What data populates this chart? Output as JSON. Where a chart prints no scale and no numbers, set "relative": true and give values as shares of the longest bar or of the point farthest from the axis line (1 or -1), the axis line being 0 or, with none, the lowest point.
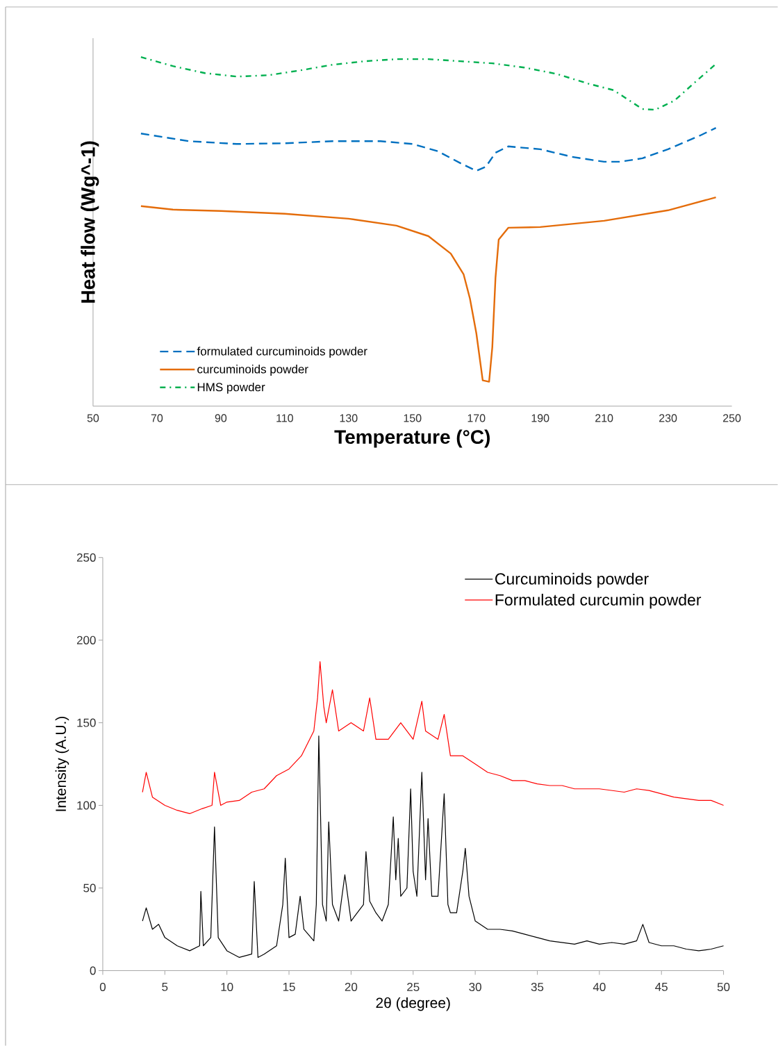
{
  "chart_data": [
    {
      "type": "line",
      "xlabel": "Temperature (°C)",
      "ylabel": "Heat flow (Wg^-1)",
      "relative": true,
      "xlim": [
        50,
        250
      ],
      "xticks": [
        50,
        70,
        90,
        110,
        130,
        150,
        170,
        190,
        210,
        230,
        250
      ],
      "legend": "bottom left",
      "tick_labels": "x",
      "series": [
        {
          "name": "formulated curcuminoids powder",
          "color": "#0070c0",
          "line_style": "dashed",
          "x": [
            65,
            80,
            95,
            110,
            125,
            140,
            150,
            158,
            165,
            170,
            173,
            176,
            180,
            190,
            200,
            210,
            215,
            222,
            230,
            240,
            245
          ],
          "values": [
            0.781,
            0.759,
            0.751,
            0.753,
            0.759,
            0.759,
            0.751,
            0.73,
            0.696,
            0.674,
            0.686,
            0.726,
            0.744,
            0.736,
            0.714,
            0.7,
            0.7,
            0.71,
            0.736,
            0.775,
            0.797
          ]
        },
        {
          "name": "curcuminoids powder",
          "color": "#e46c0a",
          "line_style": "solid",
          "x": [
            65,
            75,
            90,
            110,
            130,
            145,
            155,
            162,
            166,
            168,
            170,
            172,
            174,
            175,
            176,
            177,
            180,
            190,
            210,
            230,
            245
          ],
          "values": [
            0.573,
            0.563,
            0.559,
            0.551,
            0.537,
            0.517,
            0.487,
            0.437,
            0.378,
            0.308,
            0.209,
            0.074,
            0.07,
            0.169,
            0.368,
            0.477,
            0.511,
            0.513,
            0.531,
            0.561,
            0.598
          ]
        },
        {
          "name": "HMS powder",
          "color": "#00b050",
          "line_style": "dashdot",
          "x": [
            65,
            75,
            85,
            95,
            105,
            115,
            125,
            135,
            145,
            155,
            165,
            175,
            185,
            195,
            205,
            213,
            218,
            222,
            226,
            232,
            238,
            245
          ],
          "values": [
            1.0,
            0.974,
            0.954,
            0.944,
            0.948,
            0.962,
            0.978,
            0.988,
            0.994,
            0.994,
            0.988,
            0.982,
            0.97,
            0.952,
            0.924,
            0.905,
            0.875,
            0.851,
            0.849,
            0.875,
            0.924,
            0.98
          ]
        }
      ]
    },
    {
      "type": "line",
      "xlabel": "2θ (degree)",
      "ylabel": "Intensity (A.U.)",
      "xlim": [
        0,
        50
      ],
      "ylim": [
        0,
        250
      ],
      "xticks": [
        0,
        5,
        10,
        15,
        20,
        25,
        30,
        35,
        40,
        45,
        50
      ],
      "yticks": [
        0,
        50,
        100,
        150,
        200,
        250
      ],
      "legend": "top right",
      "series": [
        {
          "name": "Curcuminoids powder",
          "color": "#000000",
          "x": [
            3.2,
            3.5,
            4,
            4.5,
            5,
            6,
            7,
            7.8,
            7.9,
            8.1,
            8.7,
            9,
            9.3,
            10,
            11,
            12,
            12.2,
            12.5,
            13,
            14,
            14.5,
            14.7,
            15,
            15.5,
            15.9,
            16.2,
            17,
            17.2,
            17.4,
            17.7,
            18,
            18.2,
            18.5,
            19,
            19.5,
            20,
            20.5,
            21,
            21.2,
            21.5,
            22,
            22.5,
            23,
            23.4,
            23.6,
            23.8,
            24,
            24.5,
            24.8,
            25,
            25.3,
            25.7,
            26,
            26.2,
            26.5,
            27,
            27.5,
            27.8,
            28,
            28.5,
            29,
            29.2,
            29.5,
            30,
            31,
            32,
            33,
            34,
            35,
            36,
            37,
            38,
            39,
            40,
            41,
            42,
            43,
            43.5,
            44,
            45,
            46,
            47,
            48,
            49,
            50
          ],
          "values": [
            30,
            38,
            25,
            28,
            20,
            15,
            12,
            15,
            48,
            15,
            20,
            87,
            20,
            12,
            8,
            10,
            54,
            8,
            10,
            15,
            40,
            68,
            20,
            22,
            45,
            25,
            18,
            40,
            142,
            40,
            30,
            90,
            40,
            30,
            58,
            30,
            35,
            40,
            72,
            42,
            35,
            30,
            40,
            93,
            55,
            80,
            45,
            50,
            110,
            60,
            45,
            120,
            55,
            92,
            45,
            45,
            107,
            40,
            35,
            35,
            60,
            74,
            45,
            30,
            25,
            25,
            24,
            22,
            20,
            18,
            17,
            16,
            18,
            16,
            17,
            16,
            18,
            28,
            17,
            15,
            15,
            13,
            12,
            13,
            15
          ]
        },
        {
          "name": "Formulated curcumin powder",
          "color": "#ff0000",
          "x": [
            3.2,
            3.5,
            4,
            5,
            6,
            7,
            8,
            8.8,
            9,
            9.5,
            10,
            11,
            12,
            13,
            14,
            15,
            16,
            17,
            17.3,
            17.5,
            17.8,
            18,
            18.5,
            19,
            20,
            21,
            21.5,
            22,
            23,
            24,
            25,
            25.7,
            26,
            27,
            27.5,
            28,
            29,
            30,
            31,
            32,
            33,
            34,
            35,
            36,
            37,
            38,
            40,
            42,
            43,
            44,
            45,
            46,
            47,
            48,
            49,
            50
          ],
          "values": [
            108,
            120,
            105,
            100,
            97,
            95,
            98,
            100,
            120,
            100,
            102,
            103,
            108,
            110,
            118,
            122,
            130,
            145,
            165,
            187,
            160,
            150,
            170,
            145,
            150,
            145,
            165,
            140,
            140,
            150,
            140,
            163,
            145,
            140,
            155,
            130,
            130,
            125,
            120,
            118,
            115,
            115,
            113,
            112,
            112,
            110,
            110,
            108,
            110,
            109,
            107,
            105,
            104,
            103,
            103,
            100
          ]
        }
      ]
    }
  ]
}
